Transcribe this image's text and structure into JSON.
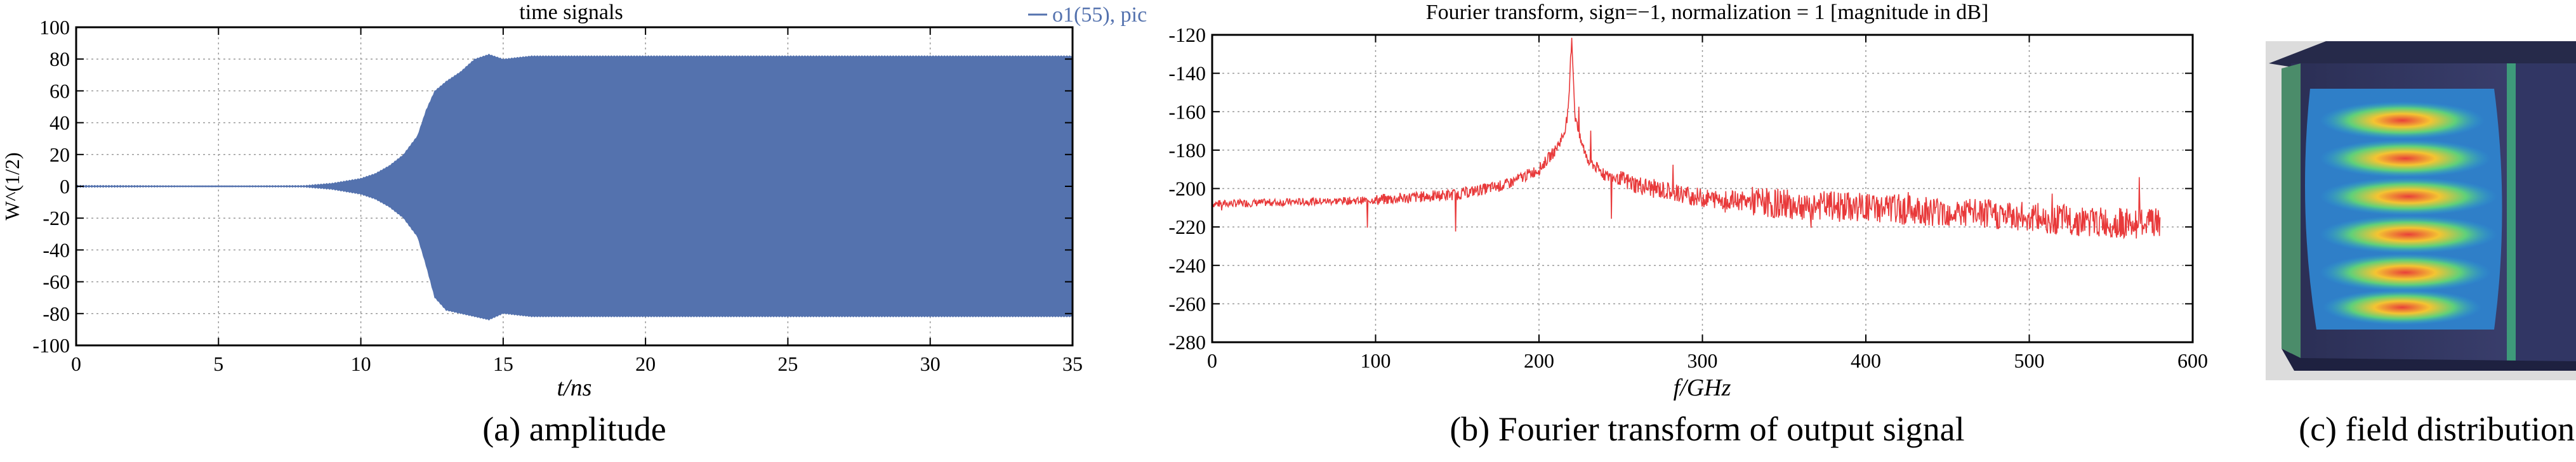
{
  "chart_data": [
    {
      "type": "area",
      "title": "time signals",
      "legend": "o1(55), pic",
      "legend_placement": "top-right",
      "xlabel": "t/ns",
      "ylabel": "W^(1/2)",
      "xlim": [
        0,
        35
      ],
      "ylim": [
        -100,
        100
      ],
      "xticks": [
        0,
        5,
        10,
        15,
        20,
        25,
        30,
        35
      ],
      "yticks": [
        100,
        80,
        60,
        40,
        20,
        0,
        -20,
        -40,
        -60,
        -80,
        -100
      ],
      "grid": true,
      "color": "#5472AE",
      "series": [
        {
          "kind": "envelope",
          "x": [
            0,
            8,
            9,
            10,
            10.5,
            11,
            11.5,
            12,
            12.3,
            12.6,
            13,
            13.5,
            14,
            14.5,
            15,
            15.5,
            16,
            20,
            25,
            30,
            35
          ],
          "upper": [
            0,
            0.5,
            2,
            5,
            8,
            13,
            20,
            32,
            48,
            60,
            66,
            72,
            80,
            83,
            80,
            81,
            82,
            82,
            82,
            82,
            82
          ],
          "lower": [
            0,
            -0.5,
            -2,
            -5,
            -8,
            -13,
            -20,
            -32,
            -50,
            -70,
            -78,
            -80,
            -82,
            -84,
            -80,
            -81,
            -82,
            -82,
            -82,
            -82,
            -82
          ]
        }
      ],
      "caption": "(a) amplitude"
    },
    {
      "type": "line",
      "title": "Fourier transform, sign=−1, normalization = 1 [magnitude in dB]",
      "xlabel": "f/GHz",
      "ylabel": "",
      "xlim": [
        0,
        600
      ],
      "ylim": [
        -280,
        -120
      ],
      "xticks": [
        0,
        100,
        200,
        300,
        400,
        500,
        600
      ],
      "yticks": [
        -120,
        -140,
        -160,
        -180,
        -200,
        -220,
        -240,
        -260,
        -280
      ],
      "grid": true,
      "color": "#E8393A",
      "series": [
        {
          "kind": "spectrum",
          "x": [
            0,
            50,
            100,
            150,
            180,
            200,
            210,
            215,
            218,
            220,
            222,
            225,
            230,
            240,
            260,
            270,
            300,
            350,
            400,
            450,
            500,
            550,
            580
          ],
          "y": [
            -208,
            -207,
            -206,
            -203,
            -198,
            -190,
            -180,
            -172,
            -160,
            -120,
            -162,
            -174,
            -185,
            -193,
            -198,
            -200,
            -205,
            -208,
            -210,
            -212,
            -215,
            -218,
            -218
          ]
        }
      ],
      "caption": "(b) Fourier transform of output signal"
    }
  ],
  "field_image": {
    "caption": "(c) field distribution"
  }
}
